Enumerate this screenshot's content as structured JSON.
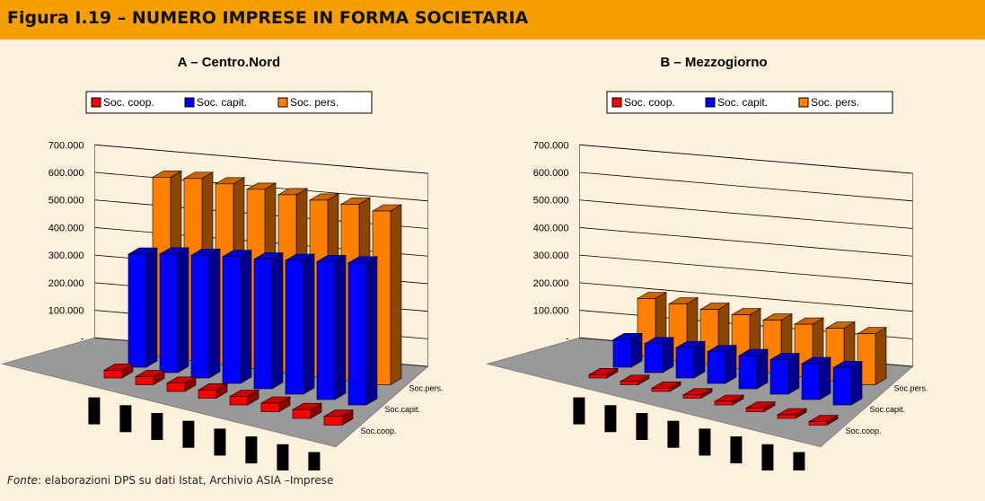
{
  "header": {
    "title": "Figura I.19 – NUMERO IMPRESE IN FORMA SOCIETARIA"
  },
  "source": {
    "label": "Fonte",
    "text": ": elaborazioni DPS su dati Istat, Archivio ASIA –Imprese"
  },
  "chart_data": [
    {
      "type": "bar3d",
      "title": "A – Centro.Nord",
      "categories": [
        null,
        null,
        null,
        null,
        null,
        null,
        null,
        null
      ],
      "series": [
        {
          "name": "Soc. coop.",
          "color": "#ff0000",
          "values": [
            28000,
            29000,
            30000,
            30000,
            31000,
            31000,
            32000,
            32000
          ]
        },
        {
          "name": "Soc. capit.",
          "color": "#0000ff",
          "values": [
            410000,
            430000,
            445000,
            460000,
            470000,
            485000,
            500000,
            515000
          ]
        },
        {
          "name": "Soc. pers.",
          "color": "#ff8000",
          "values": [
            650000,
            660000,
            655000,
            650000,
            645000,
            640000,
            640000,
            630000
          ]
        }
      ],
      "depth_labels": [
        "Soc.coop.",
        "Soc.capit.",
        "Soc.pers."
      ],
      "ylim": [
        0,
        700000
      ],
      "yticks": [
        {
          "value": 0,
          "label": "-"
        },
        {
          "value": 100000,
          "label": "100.000"
        },
        {
          "value": 200000,
          "label": "200.000"
        },
        {
          "value": 300000,
          "label": "300.000"
        },
        {
          "value": 400000,
          "label": "400.000"
        },
        {
          "value": 500000,
          "label": "500.000"
        },
        {
          "value": 600000,
          "label": "600.000"
        },
        {
          "value": 700000,
          "label": "700.000"
        }
      ],
      "grid": true
    },
    {
      "type": "bar3d",
      "title": "B – Mezzogiorno",
      "categories": [
        null,
        null,
        null,
        null,
        null,
        null,
        null,
        null
      ],
      "series": [
        {
          "name": "Soc. coop.",
          "color": "#ff0000",
          "values": [
            12000,
            12000,
            12000,
            12000,
            13000,
            13000,
            13000,
            13000
          ]
        },
        {
          "name": "Soc. capit.",
          "color": "#0000ff",
          "values": [
            100000,
            105000,
            110000,
            115000,
            120000,
            125000,
            130000,
            135000
          ]
        },
        {
          "name": "Soc. pers.",
          "color": "#ff8000",
          "values": [
            210000,
            205000,
            200000,
            195000,
            190000,
            190000,
            190000,
            185000
          ]
        }
      ],
      "depth_labels": [
        "Soc.coop.",
        "Soc.capit.",
        "Soc.pers."
      ],
      "ylim": [
        0,
        700000
      ],
      "yticks": [
        {
          "value": 0,
          "label": "-"
        },
        {
          "value": 100000,
          "label": "100.000"
        },
        {
          "value": 200000,
          "label": "200.000"
        },
        {
          "value": 300000,
          "label": "300.000"
        },
        {
          "value": 400000,
          "label": "400.000"
        },
        {
          "value": 500000,
          "label": "500.000"
        },
        {
          "value": 600000,
          "label": "600.000"
        },
        {
          "value": 700000,
          "label": "700.000"
        }
      ],
      "grid": true
    }
  ]
}
